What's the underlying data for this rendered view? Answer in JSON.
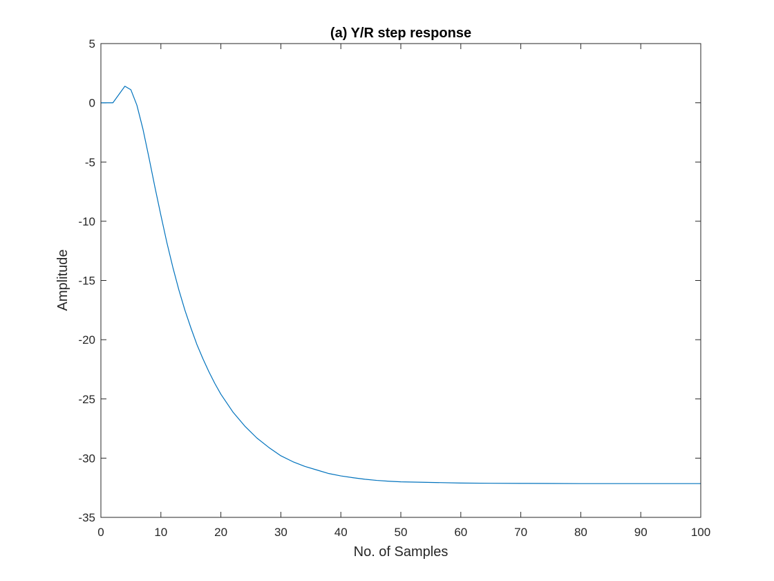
{
  "chart_data": {
    "type": "line",
    "title": "(a) Y/R step response",
    "xlabel": "No. of Samples",
    "ylabel": "Amplitude",
    "xlim": [
      0,
      100
    ],
    "ylim": [
      -35,
      5
    ],
    "xticks": [
      0,
      10,
      20,
      30,
      40,
      50,
      60,
      70,
      80,
      90,
      100
    ],
    "yticks": [
      5,
      0,
      -5,
      -10,
      -15,
      -20,
      -25,
      -30,
      -35
    ],
    "xtick_labels": [
      "0",
      "10",
      "20",
      "30",
      "40",
      "50",
      "60",
      "70",
      "80",
      "90",
      "100"
    ],
    "ytick_labels": [
      "5",
      "0",
      "-5",
      "-10",
      "-15",
      "-20",
      "-25",
      "-30",
      "-35"
    ],
    "grid": false,
    "line_color": "#0072BD",
    "series": [
      {
        "x": [
          0,
          1,
          2,
          3,
          4,
          5,
          6,
          7,
          8,
          9,
          10,
          11,
          12,
          13,
          14,
          15,
          16,
          17,
          18,
          19,
          20,
          22,
          24,
          26,
          28,
          30,
          32,
          34,
          36,
          38,
          40,
          42,
          44,
          46,
          48,
          50,
          55,
          60,
          65,
          70,
          75,
          80,
          85,
          90,
          95,
          100
        ],
        "y": [
          0,
          0,
          0,
          0.7,
          1.4,
          1.1,
          -0.2,
          -2.2,
          -4.6,
          -7.1,
          -9.5,
          -11.8,
          -13.9,
          -15.8,
          -17.5,
          -19.0,
          -20.4,
          -21.6,
          -22.7,
          -23.7,
          -24.6,
          -26.1,
          -27.3,
          -28.3,
          -29.1,
          -29.8,
          -30.3,
          -30.7,
          -31.0,
          -31.3,
          -31.5,
          -31.65,
          -31.78,
          -31.88,
          -31.95,
          -32.0,
          -32.05,
          -32.1,
          -32.12,
          -32.13,
          -32.14,
          -32.15,
          -32.15,
          -32.15,
          -32.15,
          -32.15
        ]
      }
    ]
  }
}
